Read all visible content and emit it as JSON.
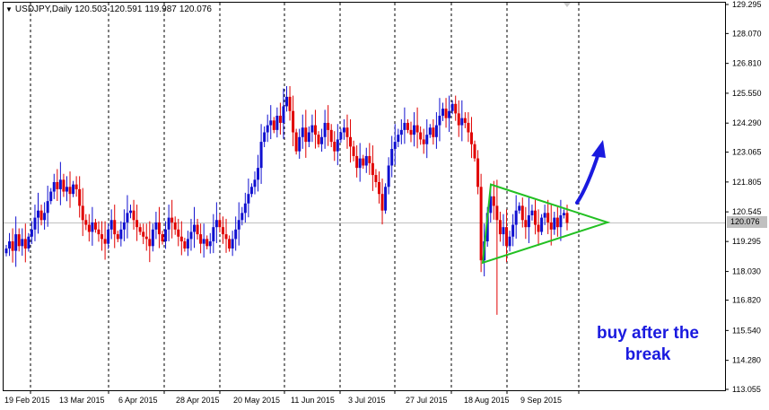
{
  "header": {
    "symbol_label": "USDJPY,Daily",
    "open": "120.503",
    "high": "120.591",
    "low": "119.987",
    "close": "120.076"
  },
  "annotation": {
    "line1": "buy after the",
    "line2": "break"
  },
  "current_price_label": "120.076",
  "colors": {
    "bull": "#1010d0",
    "bear": "#e00000",
    "triangle": "#22c022",
    "arrow": "#1a1adf",
    "annotation": "#1a1adf",
    "price_line": "#c0c0c0"
  },
  "chart_data": {
    "type": "candlestick",
    "title": "USDJPY,Daily",
    "xlabel": "",
    "ylabel": "",
    "ylim": [
      113.055,
      129.295
    ],
    "grid": "vertical dashed at date ticks",
    "y_ticks": [
      "129.295",
      "128.070",
      "126.810",
      "125.550",
      "124.290",
      "123.065",
      "121.805",
      "120.545",
      "119.295",
      "118.030",
      "116.820",
      "115.540",
      "114.280",
      "113.055"
    ],
    "x_ticks": [
      "19 Feb 2015",
      "13 Mar 2015",
      "6 Apr 2015",
      "28 Apr 2015",
      "20 May 2015",
      "11 Jun 2015",
      "3 Jul 2015",
      "27 Jul 2015",
      "18 Aug 2015",
      "9 Sep 2015"
    ],
    "current_price": 120.076,
    "closes": [
      119.0,
      119.3,
      118.9,
      119.6,
      119.1,
      119.4,
      119.0,
      119.5,
      119.8,
      120.3,
      120.6,
      120.2,
      120.5,
      121.0,
      121.4,
      121.8,
      121.5,
      121.9,
      121.4,
      121.6,
      121.3,
      121.7,
      121.5,
      120.8,
      120.2,
      120.0,
      119.7,
      120.1,
      119.8,
      119.6,
      119.4,
      119.2,
      119.8,
      120.2,
      119.6,
      119.4,
      119.8,
      120.1,
      120.5,
      120.6,
      120.2,
      119.9,
      119.7,
      119.5,
      119.4,
      119.1,
      119.8,
      120.1,
      119.6,
      119.3,
      119.8,
      120.3,
      120.1,
      119.8,
      119.5,
      119.3,
      119.0,
      119.4,
      119.7,
      120.0,
      119.6,
      119.2,
      119.4,
      119.1,
      119.3,
      119.9,
      120.2,
      119.9,
      119.6,
      119.4,
      119.0,
      119.4,
      119.8,
      120.2,
      120.5,
      120.9,
      121.3,
      121.6,
      121.9,
      122.4,
      123.5,
      123.9,
      124.2,
      124.4,
      124.0,
      124.6,
      124.3,
      125.0,
      125.4,
      124.8,
      123.9,
      123.1,
      123.7,
      124.1,
      123.5,
      123.9,
      124.2,
      123.8,
      123.4,
      123.7,
      124.3,
      124.0,
      123.5,
      123.1,
      123.6,
      123.9,
      124.1,
      123.7,
      123.3,
      122.9,
      122.4,
      122.8,
      122.5,
      122.9,
      122.6,
      122.1,
      121.8,
      121.3,
      120.6,
      121.6,
      122.5,
      123.2,
      123.5,
      123.8,
      124.0,
      124.3,
      124.0,
      123.8,
      124.2,
      123.9,
      123.6,
      123.4,
      123.8,
      124.1,
      123.7,
      124.2,
      124.6,
      124.9,
      124.5,
      124.8,
      125.1,
      124.7,
      124.2,
      124.5,
      124.3,
      123.9,
      123.4,
      122.8,
      121.6,
      118.5,
      119.3,
      120.5,
      121.2,
      120.8,
      120.2,
      119.6,
      119.9,
      119.1,
      119.5,
      120.0,
      120.6,
      120.8,
      120.2,
      119.9,
      120.4,
      120.6,
      120.0,
      119.7,
      120.3,
      120.5,
      120.1,
      119.8,
      120.3,
      119.9,
      120.4,
      120.5,
      120.08
    ]
  }
}
